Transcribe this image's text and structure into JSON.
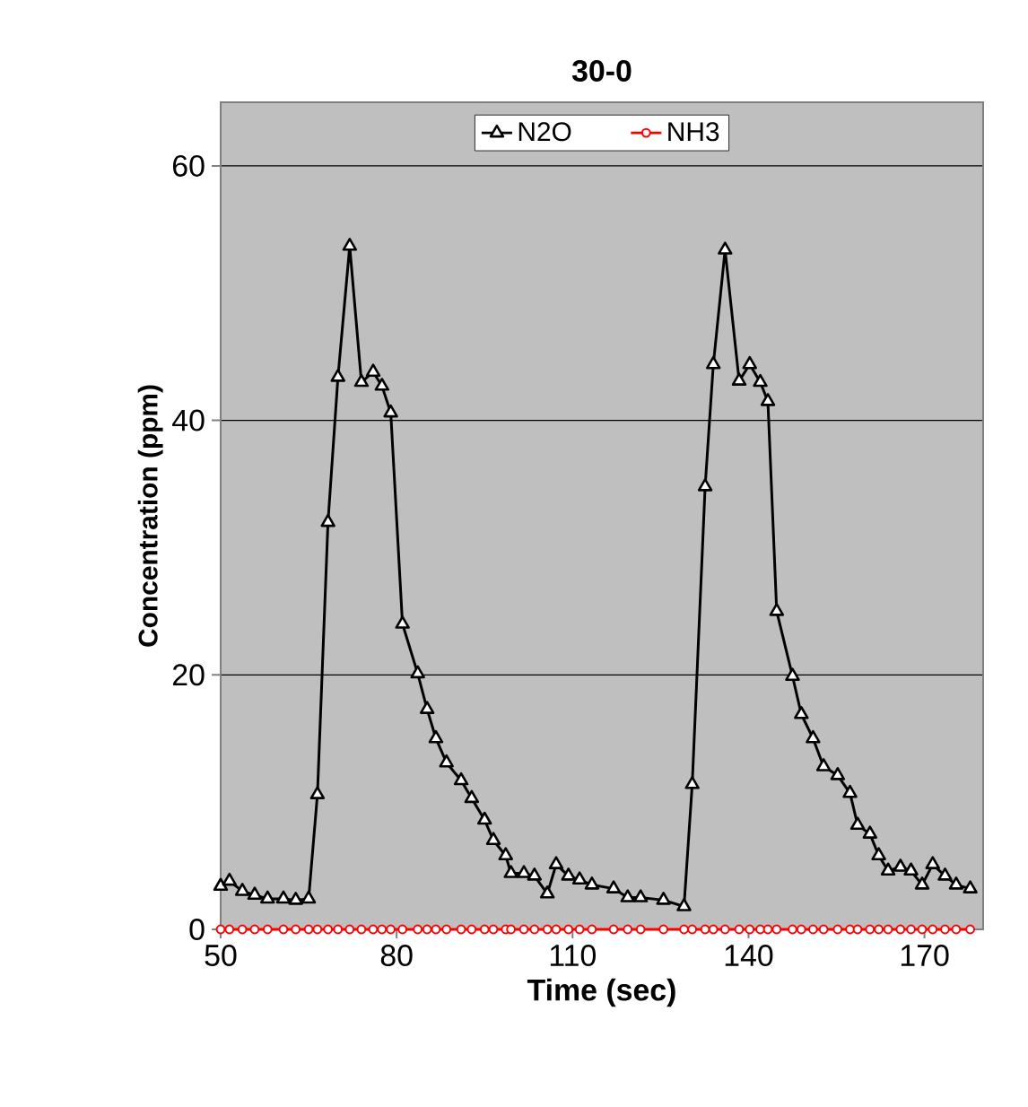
{
  "chart_data": {
    "type": "line",
    "title": "30-0",
    "xlabel": "Time (sec)",
    "ylabel": "Concentration (ppm)",
    "x": [
      50,
      51.5,
      53.7,
      55.8,
      58,
      60.7,
      62.8,
      65,
      66.5,
      68.3,
      70,
      72,
      74,
      76,
      77.5,
      79,
      81,
      83.6,
      85.2,
      86.7,
      88.5,
      91,
      92.8,
      95,
      96.5,
      98.6,
      99.5,
      101.7,
      103.5,
      105.7,
      107.2,
      109.3,
      111.2,
      113.3,
      117,
      119.4,
      121.6,
      125.5,
      129,
      130.4,
      132.6,
      134,
      136,
      138.4,
      140.2,
      142,
      143.3,
      144.8,
      147.5,
      149,
      151,
      152.8,
      155.2,
      157.3,
      158.6,
      160.7,
      162.2,
      163.8,
      165.9,
      167.7,
      169.6,
      171.4,
      173.5,
      175.4,
      177.8
    ],
    "series": [
      {
        "name": "N2O",
        "color": "#000000",
        "marker": "triangle",
        "values": [
          3.4,
          3.8,
          3,
          2.7,
          2.4,
          2.4,
          2.3,
          2.4,
          10.6,
          32,
          43.4,
          53.7,
          43,
          43.8,
          42.7,
          40.6,
          24,
          20.1,
          17.3,
          15,
          13.1,
          11.7,
          10.3,
          8.6,
          7,
          5.8,
          4.4,
          4.4,
          4.2,
          2.8,
          5.1,
          4.2,
          3.9,
          3.5,
          3.2,
          2.5,
          2.5,
          2.3,
          1.8,
          11.4,
          34.8,
          44.4,
          53.4,
          43.1,
          44.4,
          43,
          41.5,
          25,
          19.9,
          16.9,
          15,
          12.8,
          12.1,
          10.7,
          8.2,
          7.5,
          5.8,
          4.6,
          4.9,
          4.6,
          3.5,
          5.1,
          4.2,
          3.5,
          3.2
        ]
      },
      {
        "name": "NH3",
        "color": "#ff0000",
        "marker": "circle",
        "values": [
          0,
          0,
          0,
          0,
          0,
          0,
          0,
          0,
          0,
          0,
          0,
          0,
          0,
          0,
          0,
          0,
          0,
          0,
          0,
          0,
          0,
          0,
          0,
          0,
          0,
          0,
          0,
          0,
          0,
          0,
          0,
          0,
          0,
          0,
          0,
          0,
          0,
          0,
          0,
          0,
          0,
          0,
          0,
          0,
          0,
          0,
          0,
          0,
          0,
          0,
          0,
          0,
          0,
          0,
          0,
          0,
          0,
          0,
          0,
          0,
          0,
          0,
          0,
          0,
          0
        ]
      }
    ],
    "xlim": [
      50,
      180
    ],
    "xticks": [
      50,
      80,
      110,
      140,
      170
    ],
    "ylim": [
      0,
      65
    ],
    "yticks": [
      0,
      20,
      40,
      60
    ],
    "grid": "y",
    "legend": "top",
    "line_style": "solid"
  }
}
